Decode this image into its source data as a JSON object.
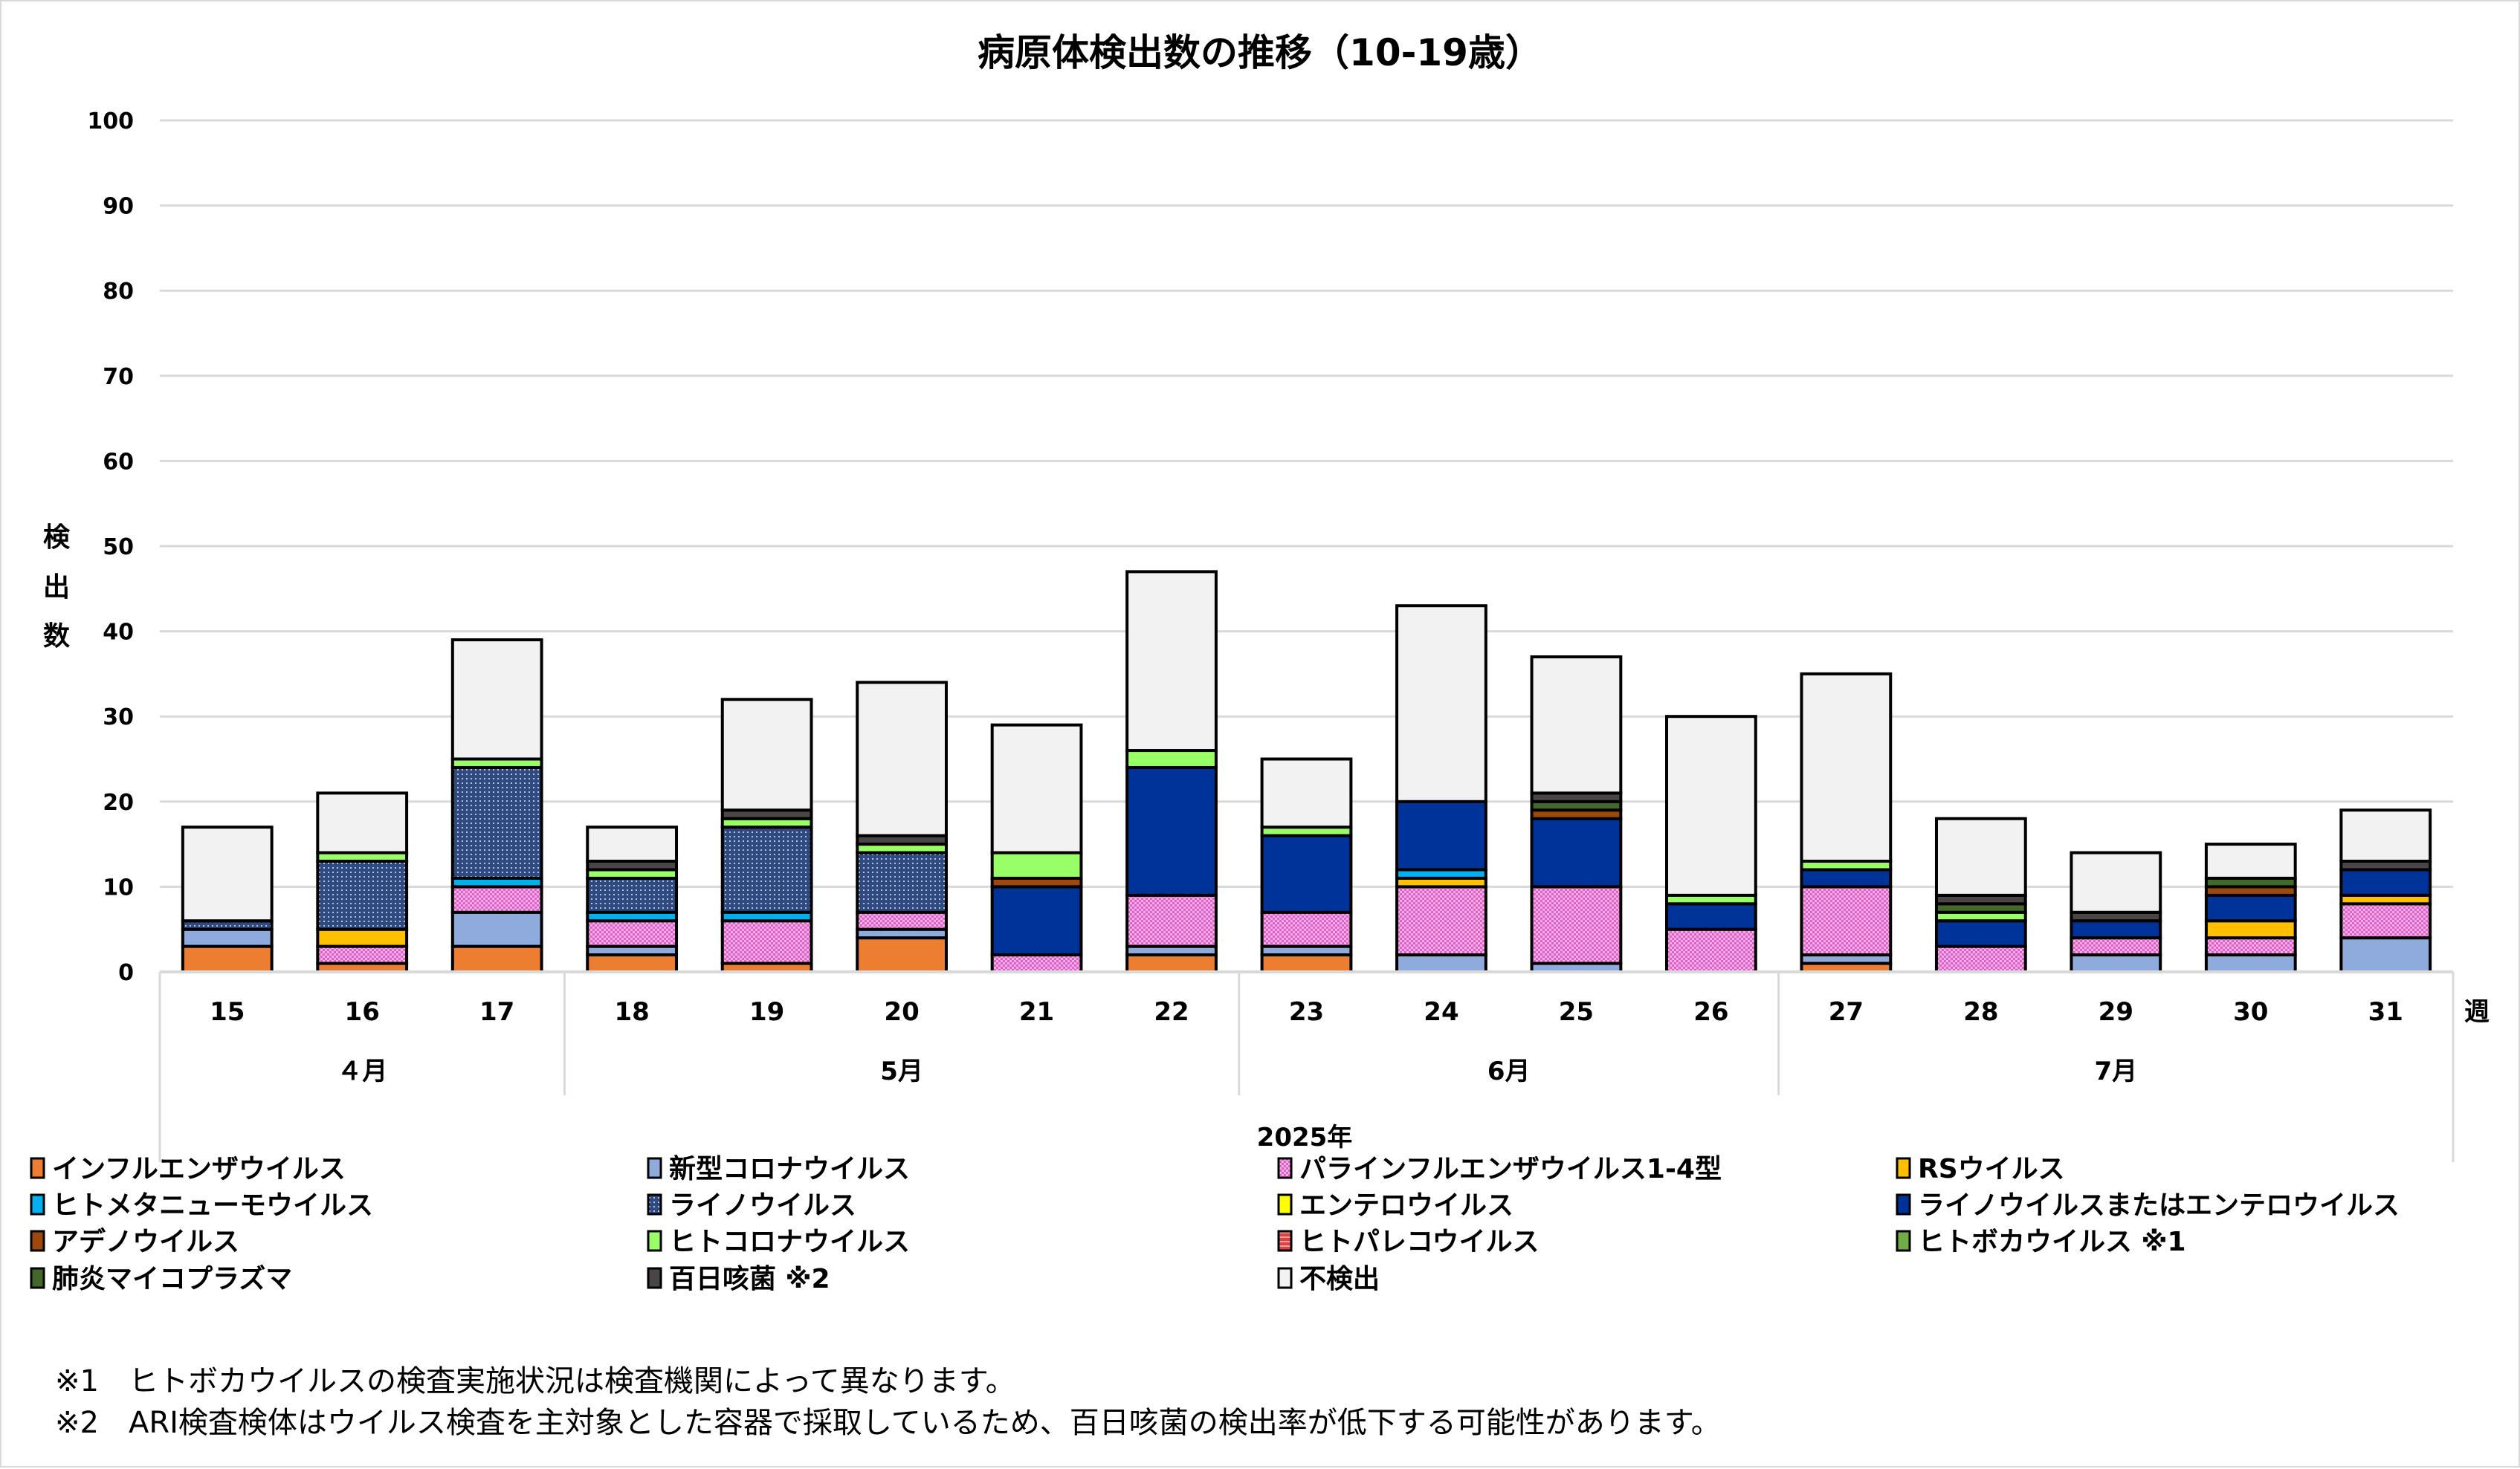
{
  "chart_data": {
    "type": "bar",
    "stacked": true,
    "title": "病原体検出数の推移（10-19歳）",
    "ylabel": "検出数",
    "xlabel": "週",
    "year_label": "2025年",
    "ylim": [
      0,
      100
    ],
    "yticks": [
      0,
      10,
      20,
      30,
      40,
      50,
      60,
      70,
      80,
      90,
      100
    ],
    "grid": true,
    "legend_position": "bottom",
    "categories": [
      "15",
      "16",
      "17",
      "18",
      "19",
      "20",
      "21",
      "22",
      "23",
      "24",
      "25",
      "26",
      "27",
      "28",
      "29",
      "30",
      "31"
    ],
    "months": [
      {
        "label": "４月",
        "weeks": [
          "15",
          "16",
          "17"
        ]
      },
      {
        "label": "5月",
        "weeks": [
          "18",
          "19",
          "20",
          "21",
          "22"
        ]
      },
      {
        "label": "6月",
        "weeks": [
          "23",
          "24",
          "25",
          "26"
        ]
      },
      {
        "label": "7月",
        "weeks": [
          "27",
          "28",
          "29",
          "30",
          "31"
        ]
      }
    ],
    "series": [
      {
        "name": "インフルエンザウイルス",
        "color": "#ED7D31",
        "pattern": "solid",
        "values": [
          3,
          1,
          3,
          2,
          1,
          4,
          0,
          2,
          2,
          0,
          0,
          0,
          1,
          0,
          0,
          0,
          0
        ]
      },
      {
        "name": "新型コロナウイルス",
        "color": "#8FAADC",
        "pattern": "solid",
        "values": [
          2,
          0,
          4,
          1,
          0,
          1,
          0,
          1,
          1,
          2,
          1,
          0,
          1,
          0,
          2,
          2,
          4
        ]
      },
      {
        "name": "パラインフルエンザウイルス1-4型",
        "color": "#E060C8",
        "pattern": "checker",
        "values": [
          0,
          2,
          3,
          3,
          5,
          2,
          2,
          6,
          4,
          8,
          9,
          5,
          8,
          3,
          2,
          2,
          4
        ]
      },
      {
        "name": "RSウイルス",
        "color": "#FFC000",
        "pattern": "solid",
        "values": [
          0,
          2,
          0,
          0,
          0,
          0,
          0,
          0,
          0,
          1,
          0,
          0,
          0,
          0,
          0,
          2,
          1
        ]
      },
      {
        "name": "ヒトメタニューモウイルス",
        "color": "#00B0F0",
        "pattern": "solid",
        "values": [
          0,
          0,
          1,
          1,
          1,
          0,
          0,
          0,
          0,
          1,
          0,
          0,
          0,
          0,
          0,
          0,
          0
        ]
      },
      {
        "name": "ライノウイルス",
        "color": "#2F4A80",
        "pattern": "dots",
        "values": [
          1,
          8,
          13,
          4,
          10,
          7,
          0,
          0,
          0,
          0,
          0,
          0,
          0,
          0,
          0,
          0,
          0
        ]
      },
      {
        "name": "エンテロウイルス",
        "color": "#FFFF00",
        "pattern": "solid",
        "values": [
          0,
          0,
          0,
          0,
          0,
          0,
          0,
          0,
          0,
          0,
          0,
          0,
          0,
          0,
          0,
          0,
          0
        ]
      },
      {
        "name": "ライノウイルスまたはエンテロウイルス",
        "color": "#003399",
        "pattern": "solid",
        "values": [
          0,
          0,
          0,
          0,
          0,
          0,
          8,
          15,
          9,
          8,
          8,
          3,
          2,
          3,
          2,
          3,
          3
        ]
      },
      {
        "name": "アデノウイルス",
        "color": "#9E480E",
        "pattern": "solid",
        "values": [
          0,
          0,
          0,
          0,
          0,
          0,
          1,
          0,
          0,
          0,
          1,
          0,
          0,
          0,
          0,
          1,
          0
        ]
      },
      {
        "name": "ヒトコロナウイルス",
        "color": "#99FF66",
        "pattern": "solid",
        "values": [
          0,
          1,
          1,
          1,
          1,
          1,
          3,
          2,
          1,
          0,
          0,
          1,
          1,
          1,
          0,
          0,
          0
        ]
      },
      {
        "name": "ヒトパレコウイルス",
        "color": "#E04040",
        "pattern": "solid",
        "values": [
          0,
          0,
          0,
          0,
          0,
          0,
          0,
          0,
          0,
          0,
          0,
          0,
          0,
          0,
          0,
          0,
          0
        ]
      },
      {
        "name": "ヒトボカウイルス ※1",
        "color": "#70AD47",
        "pattern": "solid",
        "values": [
          0,
          0,
          0,
          0,
          0,
          0,
          0,
          0,
          0,
          0,
          0,
          0,
          0,
          0,
          0,
          0,
          0
        ]
      },
      {
        "name": "肺炎マイコプラズマ",
        "color": "#43682B",
        "pattern": "solid",
        "values": [
          0,
          0,
          0,
          0,
          0,
          0,
          0,
          0,
          0,
          0,
          1,
          0,
          0,
          1,
          0,
          1,
          0
        ]
      },
      {
        "name": "百日咳菌 ※2",
        "color": "#4A4546",
        "pattern": "solid",
        "values": [
          0,
          0,
          0,
          1,
          1,
          1,
          0,
          0,
          0,
          0,
          1,
          0,
          0,
          1,
          1,
          0,
          1
        ]
      },
      {
        "name": "不検出",
        "color": "#F2F2F2",
        "pattern": "solid",
        "values": [
          11,
          7,
          14,
          4,
          13,
          18,
          15,
          21,
          8,
          23,
          16,
          21,
          22,
          9,
          7,
          4,
          6
        ]
      }
    ],
    "totals": [
      17,
      21,
      39,
      17,
      32,
      34,
      29,
      47,
      25,
      43,
      37,
      30,
      35,
      18,
      14,
      15,
      19
    ]
  },
  "legend": {
    "items": [
      "インフルエンザウイルス",
      "新型コロナウイルス",
      "パラインフルエンザウイルス1-4型",
      "RSウイルス",
      "ヒトメタニューモウイルス",
      "ライノウイルス",
      "エンテロウイルス",
      "ライノウイルスまたはエンテロウイルス",
      "アデノウイルス",
      "ヒトコロナウイルス",
      "ヒトパレコウイルス",
      "ヒトボカウイルス ※1",
      "肺炎マイコプラズマ",
      "百日咳菌 ※2",
      "不検出"
    ]
  },
  "footnotes": [
    "※1　ヒトボカウイルスの検査実施状況は検査機関によって異なります。",
    "※2　ARI検査検体はウイルス検査を主対象とした容器で採取しているため、百日咳菌の検出率が低下する可能性があります。"
  ]
}
